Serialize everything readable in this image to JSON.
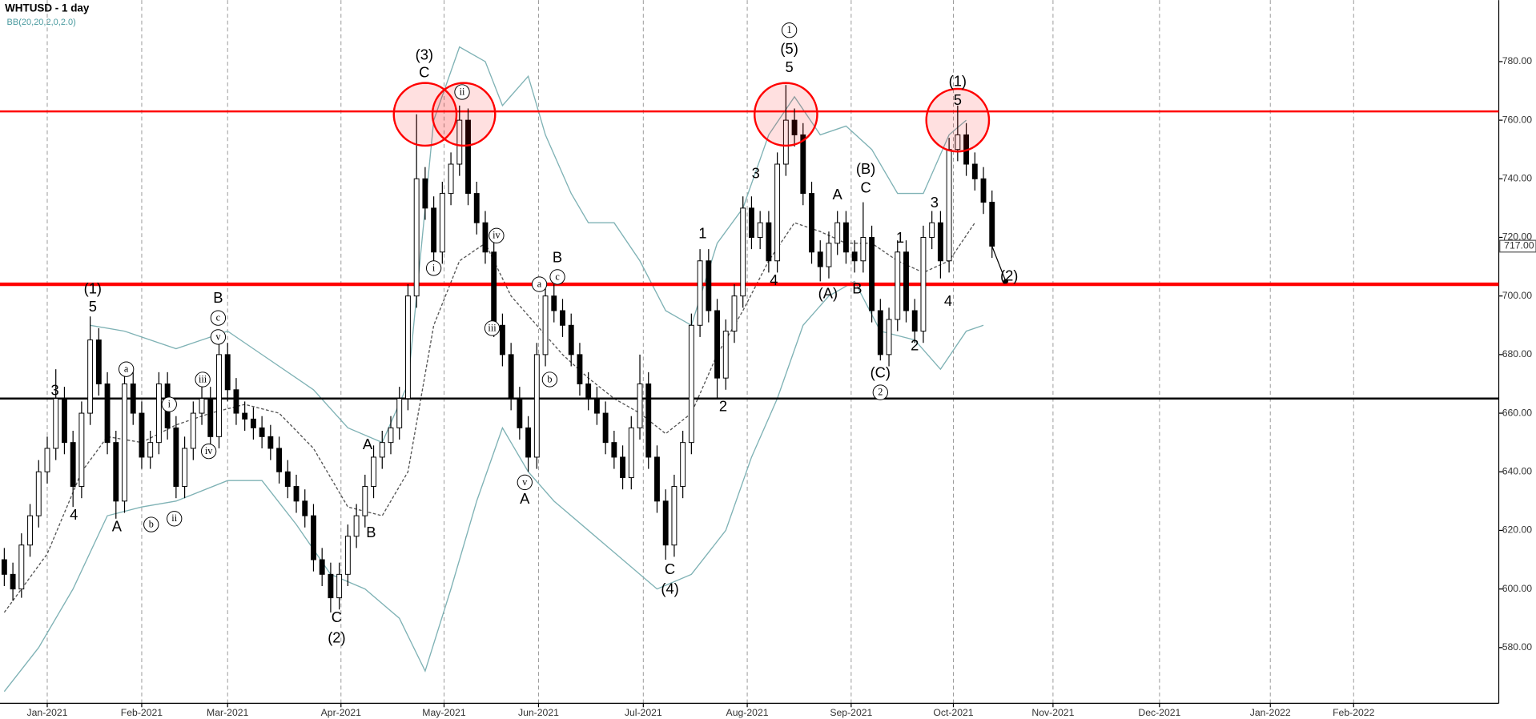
{
  "chart_data": {
    "type": "candlestick",
    "title": "WHTUSD - 1 day",
    "subtitle": "BB(20,20,2,0,2.0)",
    "candles": [
      [
        610,
        614,
        601,
        605
      ],
      [
        605,
        609,
        596,
        600
      ],
      [
        600,
        619,
        597,
        615
      ],
      [
        615,
        629,
        611,
        625
      ],
      [
        625,
        644,
        621,
        640
      ],
      [
        640,
        652,
        636,
        648
      ],
      [
        648,
        675,
        644,
        665
      ],
      [
        665,
        669,
        646,
        650
      ],
      [
        650,
        654,
        628,
        635
      ],
      [
        635,
        664,
        631,
        660
      ],
      [
        660,
        693,
        656,
        685
      ],
      [
        685,
        689,
        666,
        670
      ],
      [
        670,
        674,
        646,
        650
      ],
      [
        650,
        654,
        624,
        630
      ],
      [
        630,
        674,
        626,
        670
      ],
      [
        670,
        674,
        656,
        660
      ],
      [
        660,
        664,
        641,
        645
      ],
      [
        645,
        654,
        641,
        650
      ],
      [
        650,
        674,
        646,
        670
      ],
      [
        670,
        674,
        651,
        655
      ],
      [
        655,
        659,
        631,
        635
      ],
      [
        635,
        652,
        631,
        648
      ],
      [
        648,
        664,
        644,
        660
      ],
      [
        660,
        669,
        656,
        665
      ],
      [
        665,
        669,
        648,
        652
      ],
      [
        652,
        685,
        648,
        680
      ],
      [
        680,
        684,
        664,
        668
      ],
      [
        668,
        672,
        656,
        660
      ],
      [
        660,
        664,
        654,
        658
      ],
      [
        658,
        662,
        651,
        655
      ],
      [
        655,
        659,
        648,
        652
      ],
      [
        652,
        656,
        644,
        648
      ],
      [
        648,
        652,
        636,
        640
      ],
      [
        640,
        644,
        631,
        635
      ],
      [
        635,
        639,
        626,
        630
      ],
      [
        630,
        634,
        621,
        625
      ],
      [
        625,
        629,
        606,
        610
      ],
      [
        610,
        614,
        601,
        605
      ],
      [
        605,
        609,
        592,
        597
      ],
      [
        597,
        609,
        593,
        605
      ],
      [
        605,
        622,
        601,
        618
      ],
      [
        618,
        629,
        614,
        625
      ],
      [
        625,
        639,
        621,
        635
      ],
      [
        635,
        649,
        631,
        645
      ],
      [
        645,
        654,
        641,
        650
      ],
      [
        650,
        659,
        646,
        655
      ],
      [
        655,
        669,
        651,
        665
      ],
      [
        665,
        704,
        661,
        700
      ],
      [
        700,
        762,
        696,
        740
      ],
      [
        740,
        744,
        726,
        730
      ],
      [
        730,
        734,
        711,
        715
      ],
      [
        715,
        739,
        711,
        735
      ],
      [
        735,
        749,
        731,
        745
      ],
      [
        745,
        765,
        741,
        760
      ],
      [
        760,
        764,
        731,
        735
      ],
      [
        735,
        739,
        721,
        725
      ],
      [
        725,
        729,
        711,
        715
      ],
      [
        715,
        719,
        686,
        690
      ],
      [
        690,
        694,
        676,
        680
      ],
      [
        680,
        684,
        661,
        665
      ],
      [
        665,
        669,
        651,
        655
      ],
      [
        655,
        659,
        640,
        645
      ],
      [
        645,
        684,
        641,
        680
      ],
      [
        680,
        704,
        676,
        700
      ],
      [
        700,
        704,
        691,
        695
      ],
      [
        695,
        699,
        686,
        690
      ],
      [
        690,
        694,
        676,
        680
      ],
      [
        680,
        684,
        666,
        670
      ],
      [
        670,
        674,
        661,
        665
      ],
      [
        665,
        669,
        656,
        660
      ],
      [
        660,
        664,
        646,
        650
      ],
      [
        650,
        654,
        641,
        645
      ],
      [
        645,
        649,
        634,
        638
      ],
      [
        638,
        659,
        634,
        655
      ],
      [
        655,
        680,
        651,
        670
      ],
      [
        670,
        674,
        641,
        645
      ],
      [
        645,
        649,
        626,
        630
      ],
      [
        630,
        634,
        610,
        615
      ],
      [
        615,
        639,
        611,
        635
      ],
      [
        635,
        654,
        631,
        650
      ],
      [
        650,
        694,
        646,
        690
      ],
      [
        690,
        716,
        686,
        712
      ],
      [
        712,
        716,
        691,
        695
      ],
      [
        695,
        699,
        665,
        672
      ],
      [
        672,
        692,
        668,
        688
      ],
      [
        688,
        704,
        684,
        700
      ],
      [
        700,
        734,
        696,
        730
      ],
      [
        730,
        734,
        716,
        720
      ],
      [
        720,
        729,
        716,
        725
      ],
      [
        725,
        729,
        708,
        712
      ],
      [
        712,
        749,
        708,
        745
      ],
      [
        745,
        772,
        741,
        760
      ],
      [
        760,
        764,
        751,
        755
      ],
      [
        755,
        759,
        731,
        735
      ],
      [
        735,
        739,
        711,
        715
      ],
      [
        715,
        719,
        705,
        710
      ],
      [
        710,
        722,
        706,
        718
      ],
      [
        718,
        729,
        714,
        725
      ],
      [
        725,
        729,
        711,
        715
      ],
      [
        715,
        719,
        708,
        712
      ],
      [
        712,
        732,
        708,
        720
      ],
      [
        720,
        724,
        691,
        695
      ],
      [
        695,
        699,
        678,
        680
      ],
      [
        680,
        696,
        676,
        692
      ],
      [
        692,
        719,
        688,
        715
      ],
      [
        715,
        719,
        691,
        695
      ],
      [
        695,
        699,
        684,
        688
      ],
      [
        688,
        724,
        684,
        720
      ],
      [
        720,
        729,
        716,
        725
      ],
      [
        725,
        729,
        706,
        712
      ],
      [
        712,
        754,
        708,
        750
      ],
      [
        750,
        765,
        746,
        755
      ],
      [
        755,
        759,
        741,
        745
      ],
      [
        745,
        749,
        736,
        740
      ],
      [
        740,
        744,
        728,
        732
      ],
      [
        732,
        736,
        713,
        717
      ]
    ],
    "up_color": "#ffffff",
    "down_color": "#000000",
    "bands": [
      {
        "x": [
          10,
          14,
          20,
          26,
          30,
          36,
          40,
          44,
          47,
          50,
          53,
          56,
          58,
          61,
          63,
          66,
          68,
          71,
          74,
          77,
          80,
          83,
          86,
          89,
          92,
          95,
          98,
          101,
          104,
          107,
          110,
          112
        ],
        "values": [
          690,
          688,
          682,
          688,
          680,
          668,
          655,
          650,
          670,
          760,
          785,
          780,
          765,
          775,
          755,
          735,
          725,
          725,
          712,
          695,
          690,
          718,
          730,
          755,
          768,
          755,
          758,
          750,
          735,
          735,
          755,
          760
        ],
        "color": "#7fb2b5",
        "dashed": false
      },
      {
        "x": [
          0,
          5,
          9,
          12,
          16,
          20,
          24,
          28,
          32,
          36,
          40,
          44,
          47,
          50,
          53,
          56,
          59,
          62,
          65,
          68,
          71,
          74,
          77,
          80,
          83,
          86,
          89,
          92,
          95,
          98,
          101,
          104,
          107,
          110,
          113
        ],
        "values": [
          592,
          612,
          640,
          652,
          650,
          656,
          660,
          663,
          660,
          648,
          628,
          625,
          640,
          690,
          712,
          718,
          700,
          690,
          680,
          672,
          665,
          660,
          653,
          660,
          680,
          695,
          712,
          725,
          722,
          718,
          718,
          712,
          708,
          712,
          725
        ],
        "color": "#555555",
        "dashed": true
      },
      {
        "x": [
          0,
          4,
          8,
          12,
          16,
          20,
          26,
          30,
          34,
          38,
          42,
          46,
          49,
          52,
          55,
          58,
          61,
          64,
          68,
          72,
          76,
          80,
          84,
          87,
          90,
          93,
          96,
          99,
          102,
          106,
          109,
          112,
          114
        ],
        "values": [
          565,
          580,
          600,
          625,
          628,
          630,
          637,
          637,
          622,
          605,
          600,
          590,
          572,
          600,
          630,
          655,
          640,
          630,
          620,
          610,
          600,
          605,
          620,
          645,
          665,
          690,
          700,
          705,
          688,
          685,
          675,
          688,
          690
        ],
        "color": "#7fb2b5",
        "dashed": false
      }
    ],
    "levels": [
      {
        "value": 763,
        "color": "#ff0000"
      },
      {
        "value": 704,
        "color": "#ff0000"
      },
      {
        "value": 665,
        "color": "#000000"
      }
    ],
    "highlights": [
      {
        "x": 49,
        "y": 762
      },
      {
        "x": 53.5,
        "y": 762
      },
      {
        "x": 91,
        "y": 762
      },
      {
        "x": 111,
        "y": 760
      }
    ],
    "annotations": [
      {
        "text": "(1)",
        "x": 10.3,
        "y": 702.2
      },
      {
        "text": "5",
        "x": 10.3,
        "y": 696
      },
      {
        "text": "3",
        "x": 5.9,
        "y": 667.5
      },
      {
        "text": "4",
        "x": 8.1,
        "y": 625
      },
      {
        "text": "A",
        "x": 13.1,
        "y": 621
      },
      {
        "text": "a",
        "x": 14.2,
        "y": 675,
        "circled": true
      },
      {
        "text": "b",
        "x": 17.1,
        "y": 622,
        "circled": true
      },
      {
        "text": "i",
        "x": 19.2,
        "y": 663,
        "circled": true
      },
      {
        "text": "ii",
        "x": 19.8,
        "y": 624,
        "circled": true
      },
      {
        "text": "iii",
        "x": 23.1,
        "y": 671.5,
        "circled": true
      },
      {
        "text": "iv",
        "x": 23.8,
        "y": 647,
        "circled": true
      },
      {
        "text": "B",
        "x": 24.9,
        "y": 699
      },
      {
        "text": "c",
        "x": 24.9,
        "y": 692.5,
        "circled": true
      },
      {
        "text": "v",
        "x": 24.9,
        "y": 686,
        "circled": true
      },
      {
        "text": "C",
        "x": 38.7,
        "y": 590
      },
      {
        "text": "(2)",
        "x": 38.7,
        "y": 583
      },
      {
        "text": "A",
        "x": 42.3,
        "y": 649
      },
      {
        "text": "B",
        "x": 42.7,
        "y": 619
      },
      {
        "text": "(3)",
        "x": 48.9,
        "y": 782
      },
      {
        "text": "C",
        "x": 48.9,
        "y": 776
      },
      {
        "text": "i",
        "x": 50,
        "y": 709.5,
        "circled": true
      },
      {
        "text": "ii",
        "x": 53.3,
        "y": 769.6,
        "circled": true
      },
      {
        "text": "iv",
        "x": 57.3,
        "y": 720.6,
        "circled": true
      },
      {
        "text": "iii",
        "x": 56.8,
        "y": 689,
        "circled": true
      },
      {
        "text": "v",
        "x": 60.6,
        "y": 636.4,
        "circled": true
      },
      {
        "text": "A",
        "x": 60.6,
        "y": 630.4
      },
      {
        "text": "a",
        "x": 62.3,
        "y": 704,
        "circled": true
      },
      {
        "text": "c",
        "x": 64.4,
        "y": 706.5,
        "circled": true
      },
      {
        "text": "B",
        "x": 64.4,
        "y": 712.9
      },
      {
        "text": "b",
        "x": 63.5,
        "y": 671.5,
        "circled": true
      },
      {
        "text": "C",
        "x": 77.5,
        "y": 606.4
      },
      {
        "text": "(4)",
        "x": 77.5,
        "y": 599.7
      },
      {
        "text": "1",
        "x": 81.3,
        "y": 721
      },
      {
        "text": "2",
        "x": 83.7,
        "y": 662
      },
      {
        "text": "3",
        "x": 87.5,
        "y": 741.6
      },
      {
        "text": "4",
        "x": 89.6,
        "y": 705
      },
      {
        "text": "1",
        "x": 91.4,
        "y": 790.7,
        "circled": true
      },
      {
        "text": "(5)",
        "x": 91.4,
        "y": 784
      },
      {
        "text": "5",
        "x": 91.4,
        "y": 777.7
      },
      {
        "text": "A",
        "x": 97,
        "y": 734.3
      },
      {
        "text": "(A)",
        "x": 95.9,
        "y": 700.5
      },
      {
        "text": "B",
        "x": 99.3,
        "y": 702.2
      },
      {
        "text": "(B)",
        "x": 100.3,
        "y": 743
      },
      {
        "text": "C",
        "x": 100.3,
        "y": 736.6
      },
      {
        "text": "(C)",
        "x": 102,
        "y": 673.5
      },
      {
        "text": "2",
        "x": 102,
        "y": 667.1,
        "circled": true
      },
      {
        "text": "1",
        "x": 104.3,
        "y": 719.6
      },
      {
        "text": "2",
        "x": 106,
        "y": 682.8
      },
      {
        "text": "3",
        "x": 108.3,
        "y": 731.6
      },
      {
        "text": "4",
        "x": 109.9,
        "y": 697.9
      },
      {
        "text": "(1)",
        "x": 111,
        "y": 773
      },
      {
        "text": "5",
        "x": 111,
        "y": 766.6
      },
      {
        "text": "(2)",
        "x": 117,
        "y": 706.5
      }
    ],
    "arrow": {
      "from": [
        115,
        717
      ],
      "to": [
        116.6,
        705
      ]
    },
    "last_price": {
      "value": 717,
      "label": "717.00"
    },
    "xlim": [
      -0.5,
      174
    ],
    "ylim": [
      561,
      801
    ],
    "xticks": [
      {
        "value": 5,
        "label": "Jan-2021"
      },
      {
        "value": 16,
        "label": "Feb-2021"
      },
      {
        "value": 26,
        "label": "Mar-2021"
      },
      {
        "value": 39.2,
        "label": "Apr-2021"
      },
      {
        "value": 51.2,
        "label": "May-2021"
      },
      {
        "value": 62.2,
        "label": "Jun-2021"
      },
      {
        "value": 74.4,
        "label": "Jul-2021"
      },
      {
        "value": 86.5,
        "label": "Aug-2021"
      },
      {
        "value": 98.6,
        "label": "Sep-2021"
      },
      {
        "value": 110.5,
        "label": "Oct-2021"
      },
      {
        "value": 122.1,
        "label": "Nov-2021"
      },
      {
        "value": 134.5,
        "label": "Dec-2021"
      },
      {
        "value": 147.4,
        "label": "Jan-2022"
      },
      {
        "value": 157.1,
        "label": "Feb-2022"
      }
    ],
    "yticks": [
      {
        "value": 580,
        "label": "580.00"
      },
      {
        "value": 600,
        "label": "600.00"
      },
      {
        "value": 620,
        "label": "620.00"
      },
      {
        "value": 640,
        "label": "640.00"
      },
      {
        "value": 660,
        "label": "660.00"
      },
      {
        "value": 680,
        "label": "680.00"
      },
      {
        "value": 700,
        "label": "700.00"
      },
      {
        "value": 720,
        "label": "720.00"
      },
      {
        "value": 740,
        "label": "740.00"
      },
      {
        "value": 760,
        "label": "760.00"
      },
      {
        "value": 780,
        "label": "780.00"
      }
    ],
    "grid": true
  }
}
